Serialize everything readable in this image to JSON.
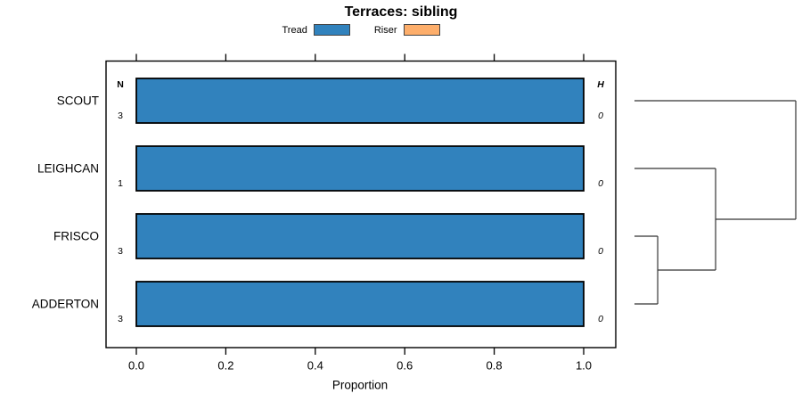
{
  "title": "Terraces: sibling",
  "legend": {
    "items": [
      {
        "label": "Tread",
        "color": "#3182BD"
      },
      {
        "label": "Riser",
        "color": "#FDAE6B"
      }
    ]
  },
  "chart_data": {
    "type": "bar",
    "orientation": "horizontal",
    "stacked": true,
    "title": "Terraces: sibling",
    "xlabel": "Proportion",
    "xticks": [
      "0.0",
      "0.2",
      "0.4",
      "0.6",
      "0.8",
      "1.0"
    ],
    "xlim": [
      0,
      1
    ],
    "grid": false,
    "legend_position": "top",
    "categories": [
      "SCOUT",
      "LEIGHCAN",
      "FRISCO",
      "ADDERTON"
    ],
    "series": [
      {
        "name": "Tread",
        "color": "#3182BD",
        "values": [
          1.0,
          1.0,
          1.0,
          1.0
        ]
      },
      {
        "name": "Riser",
        "color": "#FDAE6B",
        "values": [
          0.0,
          0.0,
          0.0,
          0.0
        ]
      }
    ],
    "row_annotations": {
      "n_header": "N",
      "n_values": [
        "3",
        "1",
        "3",
        "3"
      ],
      "h_header": "H",
      "h_values": [
        "0",
        "0",
        "0",
        "0"
      ]
    },
    "dendrogram": {
      "leaves": [
        "SCOUT",
        "LEIGHCAN",
        "FRISCO",
        "ADDERTON"
      ],
      "merges": [
        {
          "id": "m0",
          "a": "FRISCO",
          "b": "ADDERTON",
          "height": 0.144
        },
        {
          "id": "m1",
          "a": "LEIGHCAN",
          "b": "m0",
          "height": 0.503
        },
        {
          "id": "m2",
          "a": "SCOUT",
          "b": "m1",
          "height": 1.0
        }
      ]
    }
  }
}
